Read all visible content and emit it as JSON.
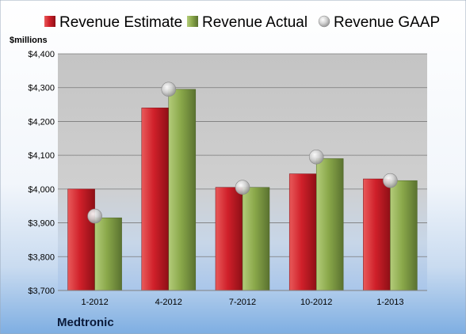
{
  "chart_data": {
    "type": "bar",
    "unit_label": "$millions",
    "company": "Medtronic",
    "categories": [
      "1-2012",
      "4-2012",
      "7-2012",
      "10-2012",
      "1-2013"
    ],
    "series": [
      {
        "name": "Revenue Estimate",
        "kind": "bar",
        "color": "#d0202a",
        "values": [
          4000,
          4240,
          4005,
          4045,
          4030
        ]
      },
      {
        "name": "Revenue Actual",
        "kind": "bar",
        "color": "#8aa84a",
        "values": [
          3915,
          4295,
          4005,
          4090,
          4025
        ]
      },
      {
        "name": "Revenue GAAP",
        "kind": "marker",
        "color": "#c8c8c8",
        "values": [
          3920,
          4295,
          4005,
          4095,
          4025
        ]
      }
    ],
    "ylim": [
      3700,
      4400
    ],
    "yticks": [
      3700,
      3800,
      3900,
      4000,
      4100,
      4200,
      4300,
      4400
    ],
    "ytick_labels": [
      "$3,700",
      "$3,800",
      "$3,900",
      "$4,000",
      "$4,100",
      "$4,200",
      "$4,300",
      "$4,400"
    ],
    "grid": true,
    "legend_position": "top"
  }
}
